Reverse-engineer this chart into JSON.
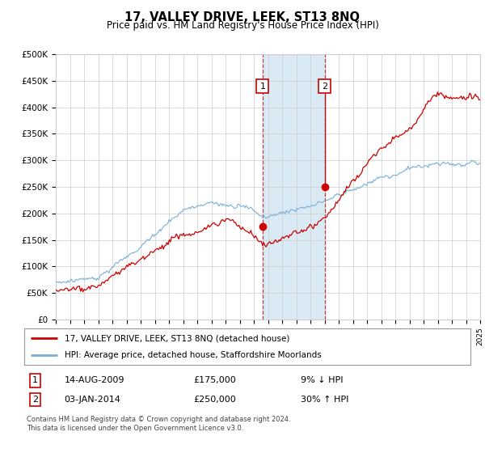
{
  "title": "17, VALLEY DRIVE, LEEK, ST13 8NQ",
  "subtitle": "Price paid vs. HM Land Registry's House Price Index (HPI)",
  "x_start_year": 1995,
  "x_end_year": 2025,
  "ylim": [
    0,
    500000
  ],
  "yticks": [
    0,
    50000,
    100000,
    150000,
    200000,
    250000,
    300000,
    350000,
    400000,
    450000,
    500000
  ],
  "ytick_labels": [
    "£0",
    "£50K",
    "£100K",
    "£150K",
    "£200K",
    "£250K",
    "£300K",
    "£350K",
    "£400K",
    "£450K",
    "£500K"
  ],
  "red_line_color": "#cc0000",
  "blue_line_color": "#7aaed6",
  "highlight_bg_color": "#daeaf5",
  "grid_color": "#cccccc",
  "transaction1": {
    "date": 2009.62,
    "value": 175000,
    "label": "1",
    "date_str": "14-AUG-2009",
    "price_str": "£175,000",
    "hpi_str": "9% ↓ HPI"
  },
  "transaction2": {
    "date": 2014.01,
    "value": 250000,
    "label": "2",
    "date_str": "03-JAN-2014",
    "price_str": "£250,000",
    "hpi_str": "30% ↑ HPI"
  },
  "legend_red_label": "17, VALLEY DRIVE, LEEK, ST13 8NQ (detached house)",
  "legend_blue_label": "HPI: Average price, detached house, Staffordshire Moorlands",
  "footer_text": "Contains HM Land Registry data © Crown copyright and database right 2024.\nThis data is licensed under the Open Government Licence v3.0.",
  "background_color": "#ffffff"
}
